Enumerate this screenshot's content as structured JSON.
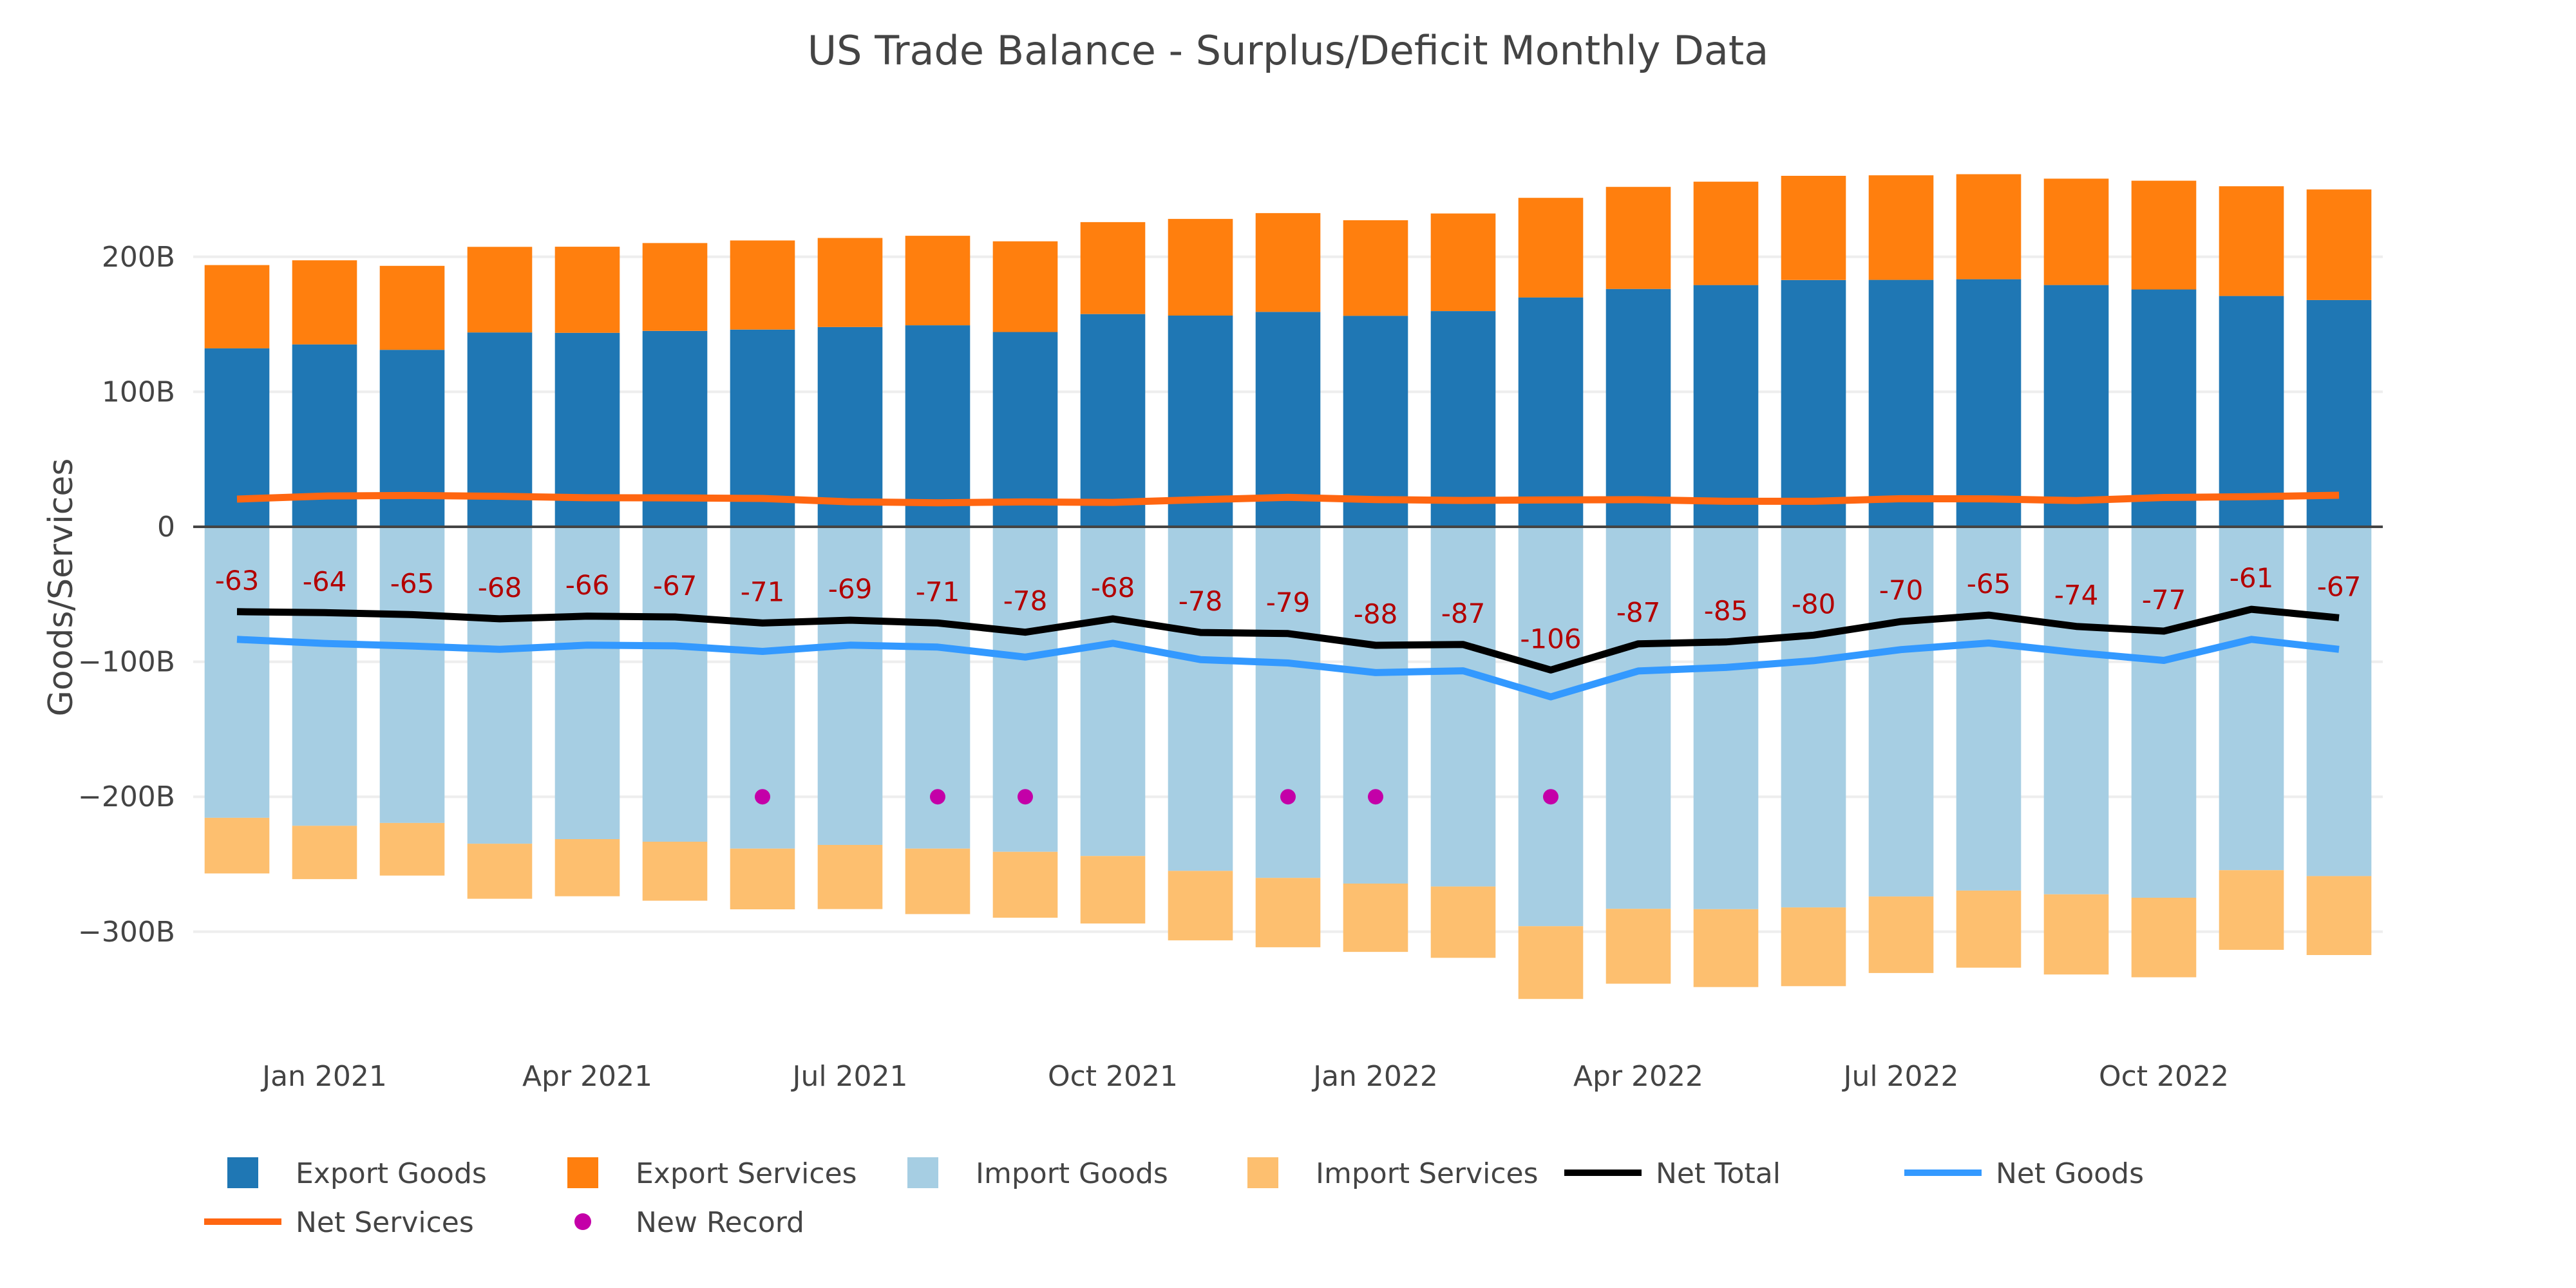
{
  "chart_data": {
    "type": "bar",
    "title": "US Trade Balance - Surplus/Deficit Monthly Data",
    "xlabel": "",
    "ylabel": "Goods/Services",
    "barmode": "relative",
    "ylim": [
      -365,
      290
    ],
    "grid": true,
    "y_ticks": [
      {
        "value": 200,
        "label": "200B"
      },
      {
        "value": 100,
        "label": "100B"
      },
      {
        "value": 0,
        "label": "0"
      },
      {
        "value": -100,
        "label": "−100B"
      },
      {
        "value": -200,
        "label": "−200B"
      },
      {
        "value": -300,
        "label": "−300B"
      }
    ],
    "x_ticks": [
      {
        "index": 1,
        "label": "Jan 2021"
      },
      {
        "index": 4,
        "label": "Apr 2021"
      },
      {
        "index": 7,
        "label": "Jul 2021"
      },
      {
        "index": 10,
        "label": "Oct 2021"
      },
      {
        "index": 13,
        "label": "Jan 2022"
      },
      {
        "index": 16,
        "label": "Apr 2022"
      },
      {
        "index": 19,
        "label": "Jul 2022"
      },
      {
        "index": 22,
        "label": "Oct 2022"
      }
    ],
    "categories": [
      "Dec 2020",
      "Jan 2021",
      "Feb 2021",
      "Mar 2021",
      "Apr 2021",
      "May 2021",
      "Jun 2021",
      "Jul 2021",
      "Aug 2021",
      "Sep 2021",
      "Oct 2021",
      "Nov 2021",
      "Dec 2021",
      "Jan 2022",
      "Feb 2022",
      "Mar 2022",
      "Apr 2022",
      "May 2022",
      "Jun 2022",
      "Jul 2022",
      "Aug 2022",
      "Sep 2022",
      "Oct 2022",
      "Nov 2022",
      "Dec 2022"
    ],
    "series": [
      {
        "name": "Export Goods",
        "kind": "bar",
        "color": "#1f77b4",
        "values": [
          132.2,
          135.1,
          131.1,
          144.0,
          143.7,
          145.1,
          146.1,
          148.0,
          149.3,
          144.3,
          157.6,
          156.5,
          159.2,
          156.3,
          159.8,
          169.9,
          176.2,
          179.1,
          182.8,
          182.9,
          183.4,
          179.1,
          175.8,
          171.0,
          168.0
        ]
      },
      {
        "name": "Export Services",
        "kind": "bar",
        "color": "#ff7f0e",
        "values": [
          61.7,
          62.3,
          62.2,
          63.4,
          63.8,
          65.1,
          66.0,
          66.0,
          66.3,
          67.2,
          68.1,
          71.6,
          73.2,
          70.8,
          72.3,
          73.8,
          75.6,
          76.6,
          77.2,
          77.5,
          77.8,
          78.8,
          80.6,
          81.3,
          81.9
        ]
      },
      {
        "name": "Import Goods",
        "kind": "bar",
        "color": "#a6cee3",
        "values": [
          -215.6,
          -221.5,
          -219.4,
          -234.8,
          -231.4,
          -233.3,
          -238.4,
          -235.7,
          -238.4,
          -240.8,
          -243.9,
          -254.9,
          -260.1,
          -264.3,
          -266.5,
          -295.9,
          -283.0,
          -283.3,
          -282.0,
          -273.9,
          -269.5,
          -272.3,
          -274.8,
          -254.4,
          -258.8
        ]
      },
      {
        "name": "Import Services",
        "kind": "bar",
        "color": "#fdbf6f",
        "values": [
          -41.2,
          -39.5,
          -39.0,
          -40.8,
          -42.3,
          -43.7,
          -45.0,
          -47.5,
          -48.5,
          -48.8,
          -50.0,
          -51.5,
          -51.4,
          -50.6,
          -52.8,
          -53.9,
          -55.5,
          -57.7,
          -58.3,
          -56.7,
          -57.1,
          -59.4,
          -58.9,
          -59.0,
          -58.5
        ]
      },
      {
        "name": "Net Total",
        "kind": "line",
        "color": "#000000",
        "values": [
          -62.9,
          -63.6,
          -65.1,
          -68.2,
          -66.2,
          -66.8,
          -71.3,
          -69.2,
          -71.3,
          -78.1,
          -68.2,
          -78.3,
          -79.1,
          -87.8,
          -87.2,
          -106.1,
          -86.7,
          -85.3,
          -80.3,
          -70.2,
          -65.4,
          -73.8,
          -77.3,
          -61.1,
          -67.4
        ],
        "labels": [
          "-63",
          "-64",
          "-65",
          "-68",
          "-66",
          "-67",
          "-71",
          "-69",
          "-71",
          "-78",
          "-68",
          "-78",
          "-79",
          "-88",
          "-87",
          "-106",
          "-87",
          "-85",
          "-80",
          "-70",
          "-65",
          "-74",
          "-77",
          "-61",
          "-67"
        ],
        "label_color": "#b30000"
      },
      {
        "name": "Net Goods",
        "kind": "line",
        "color": "#3399ff",
        "values": [
          -83.4,
          -86.4,
          -88.3,
          -90.8,
          -87.7,
          -88.2,
          -92.3,
          -87.7,
          -89.1,
          -96.5,
          -86.3,
          -98.4,
          -100.9,
          -108.0,
          -106.7,
          -126.0,
          -106.8,
          -104.2,
          -99.2,
          -91.0,
          -86.1,
          -93.2,
          -99.0,
          -83.4,
          -90.8
        ]
      },
      {
        "name": "Net Services",
        "kind": "line",
        "color": "#ff6611",
        "values": [
          20.5,
          22.8,
          23.2,
          22.6,
          21.5,
          21.4,
          21.0,
          18.5,
          17.8,
          18.4,
          18.1,
          20.1,
          21.8,
          20.2,
          19.5,
          19.9,
          20.1,
          18.9,
          18.9,
          20.8,
          20.7,
          19.4,
          21.7,
          22.3,
          23.4
        ]
      },
      {
        "name": "New Record",
        "kind": "scatter",
        "color": "#c400a8",
        "points": [
          {
            "category": "Jun 2021",
            "value": -200
          },
          {
            "category": "Aug 2021",
            "value": -200
          },
          {
            "category": "Sep 2021",
            "value": -200
          },
          {
            "category": "Dec 2021",
            "value": -200
          },
          {
            "category": "Jan 2022",
            "value": -200
          },
          {
            "category": "Mar 2022",
            "value": -200
          }
        ]
      }
    ],
    "legend": {
      "placement": "bottom-left",
      "items": [
        {
          "name": "Export Goods",
          "symbol": "square",
          "color": "#1f77b4"
        },
        {
          "name": "Export Services",
          "symbol": "square",
          "color": "#ff7f0e"
        },
        {
          "name": "Import Goods",
          "symbol": "square",
          "color": "#a6cee3"
        },
        {
          "name": "Import Services",
          "symbol": "square",
          "color": "#fdbf6f"
        },
        {
          "name": "Net Total",
          "symbol": "line",
          "color": "#000000"
        },
        {
          "name": "Net Goods",
          "symbol": "line",
          "color": "#3399ff"
        },
        {
          "name": "Net Services",
          "symbol": "line",
          "color": "#ff6611"
        },
        {
          "name": "New Record",
          "symbol": "dot",
          "color": "#c400a8"
        }
      ]
    }
  }
}
